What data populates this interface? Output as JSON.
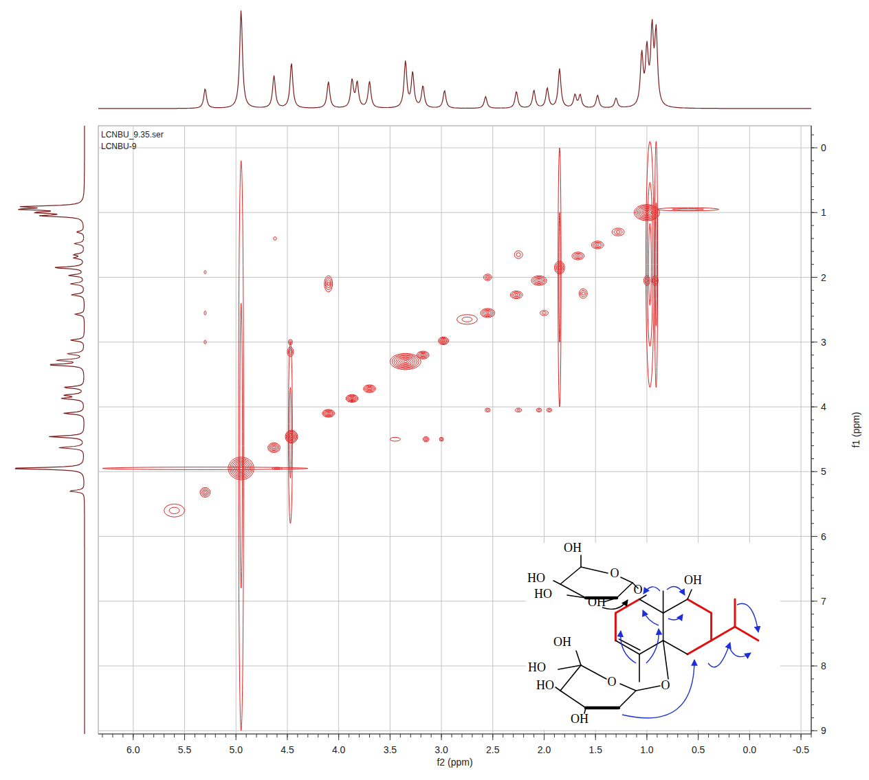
{
  "chart_data": {
    "type": "contour",
    "annotations": [
      "LCNBU_9.35.ser",
      "LCNBU-9"
    ],
    "x_label": "f2 (ppm)",
    "y_label": "f1 (ppm)",
    "xlim": [
      6.34,
      -0.6
    ],
    "ylim": [
      -0.34,
      9.05
    ],
    "xticks": [
      {
        "value": 6,
        "label": "6.0"
      },
      {
        "value": 5.5,
        "label": "5.5"
      },
      {
        "value": 5,
        "label": "5.0"
      },
      {
        "value": 4.5,
        "label": "4.5"
      },
      {
        "value": 4,
        "label": "4.0"
      },
      {
        "value": 3.5,
        "label": "3.5"
      },
      {
        "value": 3,
        "label": "3.0"
      },
      {
        "value": 2.5,
        "label": "2.5"
      },
      {
        "value": 2,
        "label": "2.0"
      },
      {
        "value": 1.5,
        "label": "1.5"
      },
      {
        "value": 1,
        "label": "1.0"
      },
      {
        "value": 0.5,
        "label": "0.5"
      },
      {
        "value": 0,
        "label": "0.0"
      },
      {
        "value": -0.5,
        "label": "-0.5"
      }
    ],
    "yticks": [
      0,
      1,
      2,
      3,
      4,
      5,
      6,
      7,
      8,
      9
    ],
    "grid": true,
    "color": "#e02424",
    "projection": {
      "color": "#7a1c1c",
      "ylim": [
        0,
        100
      ],
      "x": [
        5.3,
        4.95,
        4.63,
        4.46,
        4.1,
        3.87,
        3.82,
        3.7,
        3.35,
        3.28,
        3.18,
        2.97,
        2.57,
        2.27,
        2.1,
        1.97,
        1.85,
        1.7,
        1.65,
        1.48,
        1.3,
        1.05,
        1.0,
        0.95,
        0.91
      ],
      "values": [
        20,
        100,
        33,
        46,
        27,
        28,
        25,
        27,
        47,
        35,
        22,
        18,
        12,
        17,
        18,
        20,
        40,
        13,
        13,
        13,
        10,
        52,
        55,
        75,
        73
      ]
    },
    "cross_peaks": {
      "x": [
        5.3,
        4.95,
        4.63,
        4.46,
        4.1,
        3.87,
        3.7,
        3.35,
        3.18,
        2.98,
        2.55,
        2.27,
        2.05,
        1.85,
        1.67,
        1.48,
        1.28,
        1.0,
        5.6,
        2.75,
        4.1,
        2.55,
        2.25,
        2.05,
        1.95,
        1.0,
        0.92,
        1.62,
        2.25,
        2.55,
        2.0,
        5.3,
        5.3,
        5.3,
        4.62,
        3.15,
        3.0,
        4.47,
        4.47,
        3.45,
        4.6,
        4.95,
        4.47,
        1.85,
        0.97,
        0.91,
        5.3,
        0.6
      ],
      "y": [
        5.32,
        4.95,
        4.63,
        4.46,
        4.1,
        3.87,
        3.72,
        3.3,
        3.2,
        2.98,
        2.55,
        2.27,
        2.05,
        1.85,
        1.67,
        1.5,
        1.3,
        1.0,
        5.6,
        2.65,
        2.1,
        4.05,
        4.05,
        4.05,
        4.05,
        2.05,
        2.05,
        2.25,
        1.65,
        2.0,
        2.55,
        2.55,
        3.0,
        1.92,
        1.4,
        4.5,
        4.5,
        3.15,
        3.0,
        4.5,
        4.95,
        4.6,
        4.4,
        2.0,
        1.8,
        1.8,
        4.95,
        0.95
      ],
      "x_width": [
        0.1,
        0.25,
        0.12,
        0.12,
        0.12,
        0.12,
        0.12,
        0.3,
        0.12,
        0.1,
        0.14,
        0.12,
        0.15,
        0.1,
        0.12,
        0.12,
        0.12,
        0.25,
        0.2,
        0.2,
        0.08,
        0.05,
        0.06,
        0.05,
        0.05,
        0.06,
        0.06,
        0.08,
        0.08,
        0.08,
        0.08,
        0.02,
        0.02,
        0.02,
        0.03,
        0.06,
        0.04,
        0.06,
        0.04,
        0.1,
        0.1,
        0.05,
        0.04,
        0.03,
        0.08,
        0.03,
        2.0,
        0.6
      ],
      "y_width": [
        0.15,
        0.35,
        0.15,
        0.2,
        0.12,
        0.12,
        0.12,
        0.25,
        0.12,
        0.12,
        0.14,
        0.12,
        0.15,
        0.2,
        0.12,
        0.12,
        0.12,
        0.25,
        0.2,
        0.15,
        0.25,
        0.06,
        0.06,
        0.06,
        0.06,
        0.15,
        0.15,
        0.15,
        0.12,
        0.1,
        0.08,
        0.06,
        0.06,
        0.05,
        0.05,
        0.08,
        0.06,
        0.15,
        0.08,
        0.06,
        0.03,
        8.8,
        2.8,
        4.0,
        3.8,
        3.8,
        0.04,
        0.05
      ],
      "intensity": [
        4,
        8,
        5,
        7,
        6,
        6,
        5,
        8,
        5,
        5,
        5,
        4,
        5,
        5,
        4,
        4,
        3,
        8,
        2,
        2,
        4,
        2,
        2,
        2,
        2,
        3,
        3,
        3,
        2,
        3,
        2,
        1,
        1,
        1,
        1,
        3,
        2,
        3,
        2,
        1,
        2,
        2,
        2,
        2,
        3,
        2,
        1,
        2
      ]
    },
    "structure_labels": [
      "OH",
      "HO",
      "O",
      "HO",
      "OH",
      "O",
      "OH",
      "OH",
      "HO",
      "O",
      "HO",
      "OH",
      "O"
    ]
  }
}
